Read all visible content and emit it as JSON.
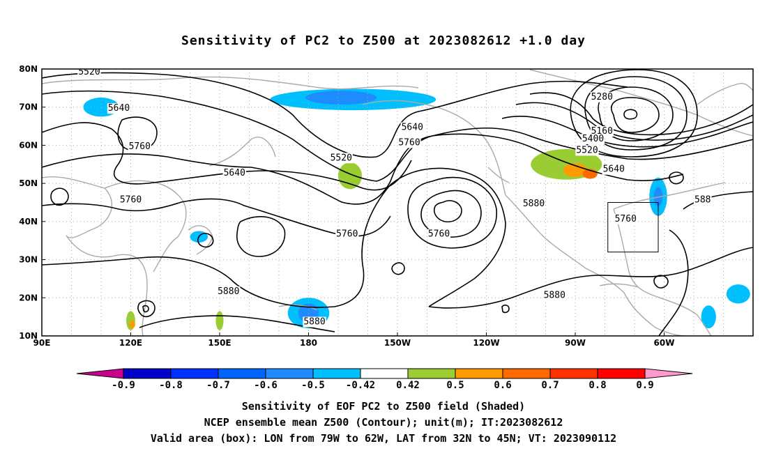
{
  "title": "Sensitivity of PC2 to Z500 at 2023082612 +1.0 day",
  "map": {
    "lat_labels": [
      "80N",
      "70N",
      "60N",
      "50N",
      "40N",
      "30N",
      "20N",
      "10N"
    ],
    "lon_labels": [
      "90E",
      "120E",
      "150E",
      "180",
      "150W",
      "120W",
      "90W",
      "60W"
    ],
    "contour_labels": [
      {
        "text": "5520",
        "lon": 106,
        "lat": 78.5
      },
      {
        "text": "5640",
        "lon": 116,
        "lat": 69
      },
      {
        "text": "5760",
        "lon": 123,
        "lat": 59
      },
      {
        "text": "5640",
        "lon": 155,
        "lat": 52
      },
      {
        "text": "5760",
        "lon": 120,
        "lat": 45
      },
      {
        "text": "5520",
        "lon": 191,
        "lat": 56
      },
      {
        "text": "5640",
        "lon": 215,
        "lat": 64
      },
      {
        "text": "5760",
        "lon": 214,
        "lat": 60
      },
      {
        "text": "5760",
        "lon": 193,
        "lat": 36
      },
      {
        "text": "5760",
        "lon": 224,
        "lat": 36
      },
      {
        "text": "5880",
        "lon": 256,
        "lat": 44
      },
      {
        "text": "5280",
        "lon": 279,
        "lat": 72
      },
      {
        "text": "5160",
        "lon": 279,
        "lat": 63
      },
      {
        "text": "5400",
        "lon": 276,
        "lat": 61
      },
      {
        "text": "5520",
        "lon": 274,
        "lat": 58
      },
      {
        "text": "5640",
        "lon": 283,
        "lat": 53
      },
      {
        "text": "5760",
        "lon": 287,
        "lat": 40
      },
      {
        "text": "588",
        "lon": 313,
        "lat": 45
      },
      {
        "text": "5880",
        "lon": 153,
        "lat": 21
      },
      {
        "text": "5880",
        "lon": 182,
        "lat": 13
      },
      {
        "text": "5880",
        "lon": 263,
        "lat": 20
      }
    ],
    "valid_box": {
      "lon_min": 281,
      "lon_max": 298,
      "lat_min": 32,
      "lat_max": 45
    },
    "shaded_areas": [
      {
        "category": "-0.5..-0.42",
        "color": "#00bfff",
        "lon": 84,
        "lat": 71.5,
        "rx": 6,
        "ry": 2
      },
      {
        "category": "-0.5..-0.42",
        "color": "#00bfff",
        "lon": 110,
        "lat": 70,
        "rx": 6,
        "ry": 2.5
      },
      {
        "category": "-0.5..-0.42",
        "color": "#00bfff",
        "lon": 195,
        "lat": 72,
        "rx": 28,
        "ry": 2.8
      },
      {
        "category": "-0.6..-0.5",
        "color": "#1e8cff",
        "lon": 191,
        "lat": 72.5,
        "rx": 12,
        "ry": 1.8
      },
      {
        "category": "-0.5..-0.42",
        "color": "#00bfff",
        "lon": 298,
        "lat": 46.5,
        "rx": 3,
        "ry": 5
      },
      {
        "category": "-0.6..-0.5",
        "color": "#1e8cff",
        "lon": 298,
        "lat": 46.5,
        "rx": 1.5,
        "ry": 2.5
      },
      {
        "category": "-0.5..-0.42",
        "color": "#00bfff",
        "lon": 180,
        "lat": 16,
        "rx": 7,
        "ry": 4
      },
      {
        "category": "-0.6..-0.5",
        "color": "#1e8cff",
        "lon": 180,
        "lat": 16,
        "rx": 3.5,
        "ry": 2.5
      },
      {
        "category": "-0.5..-0.42",
        "color": "#00bfff",
        "lon": 325,
        "lat": 21,
        "rx": 4,
        "ry": 2.5
      },
      {
        "category": "-0.5..-0.42",
        "color": "#00bfff",
        "lon": 315,
        "lat": 15,
        "rx": 2.5,
        "ry": 3
      },
      {
        "category": "-0.5..-0.42",
        "color": "#00bfff",
        "lon": 143,
        "lat": 36,
        "rx": 3,
        "ry": 1.5
      },
      {
        "category": "0.42..0.5",
        "color": "#9acd32",
        "lon": 194,
        "lat": 52,
        "rx": 4,
        "ry": 3.5
      },
      {
        "category": "0.42..0.5",
        "color": "#9acd32",
        "lon": 267,
        "lat": 55,
        "rx": 12,
        "ry": 4
      },
      {
        "category": "0.5..0.6",
        "color": "#ff9a00",
        "lon": 270,
        "lat": 53.5,
        "rx": 4,
        "ry": 1.8
      },
      {
        "category": "0.6..0.7",
        "color": "#ff6a00",
        "lon": 275,
        "lat": 52.5,
        "rx": 2.5,
        "ry": 1.3
      },
      {
        "category": "0.42..0.5",
        "color": "#9acd32",
        "lon": 120,
        "lat": 14,
        "rx": 1.5,
        "ry": 2.5
      },
      {
        "category": "0.5..0.6",
        "color": "#ff9a00",
        "lon": 120.5,
        "lat": 13,
        "rx": 1,
        "ry": 1
      },
      {
        "category": "0.42..0.5",
        "color": "#9acd32",
        "lon": 150,
        "lat": 14,
        "rx": 1.3,
        "ry": 2.5
      }
    ]
  },
  "colorbar": {
    "labels": [
      "-0.9",
      "-0.8",
      "-0.7",
      "-0.6",
      "-0.5",
      "-0.42",
      "0.42",
      "0.5",
      "0.6",
      "0.7",
      "0.8",
      "0.9"
    ],
    "colors": [
      "#0000c8",
      "#0032ff",
      "#0064ff",
      "#1e8cff",
      "#00bfff",
      "#ffffff",
      "#9acd32",
      "#ff9a00",
      "#ff6a00",
      "#ff3200",
      "#ff0000"
    ],
    "low_end_color": "#c8008c",
    "high_end_color": "#ff9acd"
  },
  "captions": {
    "line1": "Sensitivity of EOF PC2 to Z500 field (Shaded)",
    "line2": "NCEP ensemble mean Z500 (Contour); unit(m); IT:2023082612",
    "line3": "Valid area (box): LON from 79W to 62W, LAT from 32N to 45N; VT: 2023090112"
  }
}
